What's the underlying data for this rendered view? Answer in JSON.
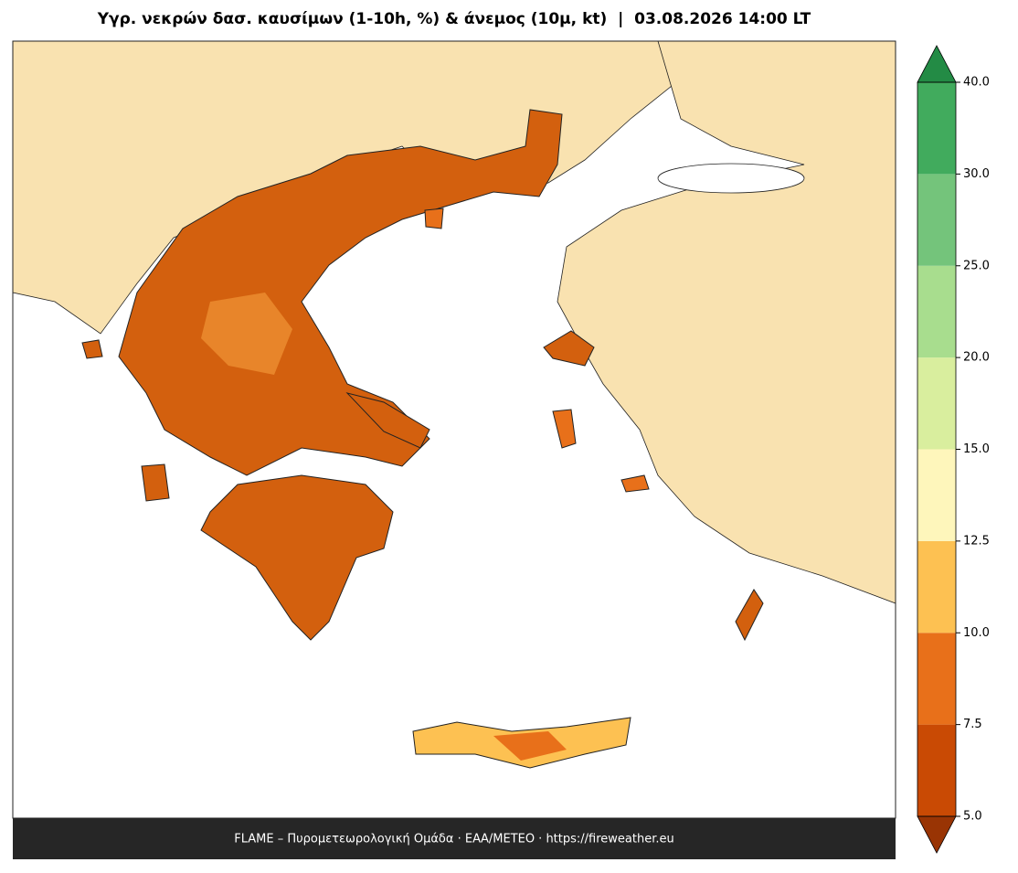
{
  "title": "Υγρ. νεκρών δασ. καυσίμων (1-10h, %) & άνεμος (10μ, kt)  |  03.08.2026 14:00 LT",
  "footer": "FLAME – Πυρομετεωρολογική Ομάδα · ΕΑΑ/METEO · https://fireweather.eu",
  "colorbar": {
    "ticks": [
      {
        "value": 5,
        "label": "5.0"
      },
      7.5,
      {
        "value": 10,
        "label": "10.0"
      },
      12.5,
      {
        "value": 15,
        "label": "15.0"
      },
      {
        "value": 20,
        "label": "20.0"
      },
      {
        "value": 25,
        "label": "25.0"
      },
      {
        "value": 30,
        "label": "30.0"
      },
      {
        "value": 40,
        "label": "40.0"
      }
    ],
    "colors": [
      "#c94a04",
      "#e8701a",
      "#fdc152",
      "#fef6bb",
      "#d9ee9e",
      "#a8dd8e",
      "#74c47b",
      "#41ab5d"
    ],
    "under_color": "#993404",
    "over_color": "#238b45"
  }
}
